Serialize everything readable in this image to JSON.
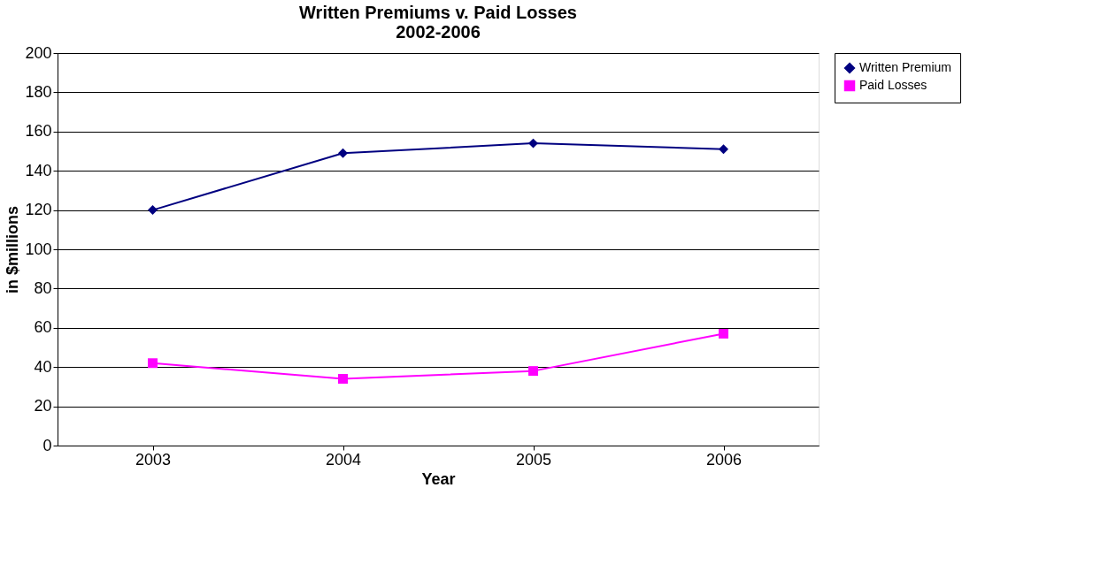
{
  "chart_data": {
    "type": "line",
    "title": [
      "Written Premiums v. Paid Losses",
      "2002-2006"
    ],
    "xlabel": "Year",
    "ylabel": "in $millions",
    "categories": [
      "2003",
      "2004",
      "2005",
      "2006"
    ],
    "series": [
      {
        "name": "Written Premium",
        "color": "#000080",
        "marker": "diamond",
        "values": [
          120,
          149,
          154,
          151
        ]
      },
      {
        "name": "Paid Losses",
        "color": "#ff00ff",
        "marker": "square",
        "values": [
          42,
          34,
          38,
          57
        ]
      }
    ],
    "ylim": [
      0,
      200
    ],
    "yticks": [
      0,
      20,
      40,
      60,
      80,
      100,
      120,
      140,
      160,
      180,
      200
    ],
    "grid": "y",
    "legend": "right"
  }
}
